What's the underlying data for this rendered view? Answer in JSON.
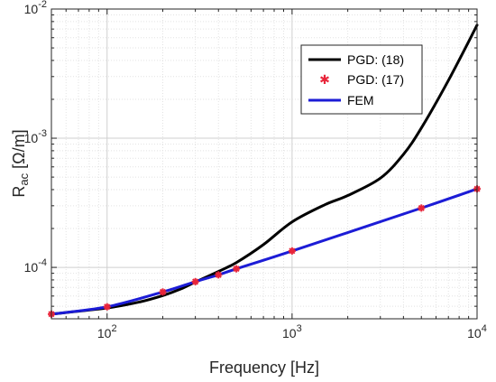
{
  "chart_data": {
    "type": "line",
    "title": "",
    "xlabel": "Frequency [Hz]",
    "ylabel": {
      "base": "R",
      "sub": "ac",
      "unit": " [Ω/m]"
    },
    "xscale": "log",
    "yscale": "log",
    "xlim": [
      50,
      10000
    ],
    "ylim": [
      4e-05,
      0.01
    ],
    "grid": {
      "major": true,
      "minor": true
    },
    "legend_position": "top-right",
    "x_ticks": [
      {
        "base": "10",
        "exp": "2",
        "value": 100
      },
      {
        "base": "10",
        "exp": "3",
        "value": 1000
      },
      {
        "base": "10",
        "exp": "4",
        "value": 10000
      }
    ],
    "y_ticks": [
      {
        "base": "10",
        "exp": "-4",
        "value": 0.0001
      },
      {
        "base": "10",
        "exp": "-3",
        "value": 0.001
      },
      {
        "base": "10",
        "exp": "-2",
        "value": 0.01
      }
    ],
    "series": [
      {
        "name": "PGD: (18)",
        "style": "line",
        "color": "#000000",
        "x": [
          50,
          100,
          150,
          200,
          250,
          300,
          400,
          500,
          700,
          1000,
          1500,
          2000,
          3000,
          4000,
          5000,
          7000,
          10000
        ],
        "y": [
          4.35e-05,
          4.85e-05,
          5.4e-05,
          6.05e-05,
          6.8e-05,
          7.7e-05,
          9.3e-05,
          0.000109,
          0.00015,
          0.000225,
          0.000305,
          0.00036,
          0.00049,
          0.00075,
          0.0012,
          0.0028,
          0.0075
        ]
      },
      {
        "name": "PGD: (17)",
        "style": "markers",
        "marker": "asterisk",
        "color": "#e8253a",
        "x": [
          50,
          100,
          200,
          300,
          400,
          500,
          1000,
          5000,
          10000
        ],
        "y": [
          4.35e-05,
          4.95e-05,
          6.45e-05,
          7.75e-05,
          8.75e-05,
          9.75e-05,
          0.000134,
          0.000288,
          0.000405
        ]
      },
      {
        "name": "FEM",
        "style": "line",
        "color": "#1c1cd6",
        "x": [
          50,
          100,
          200,
          300,
          400,
          500,
          1000,
          5000,
          10000
        ],
        "y": [
          4.35e-05,
          4.95e-05,
          6.45e-05,
          7.75e-05,
          8.75e-05,
          9.75e-05,
          0.000134,
          0.000288,
          0.000405
        ]
      }
    ]
  }
}
